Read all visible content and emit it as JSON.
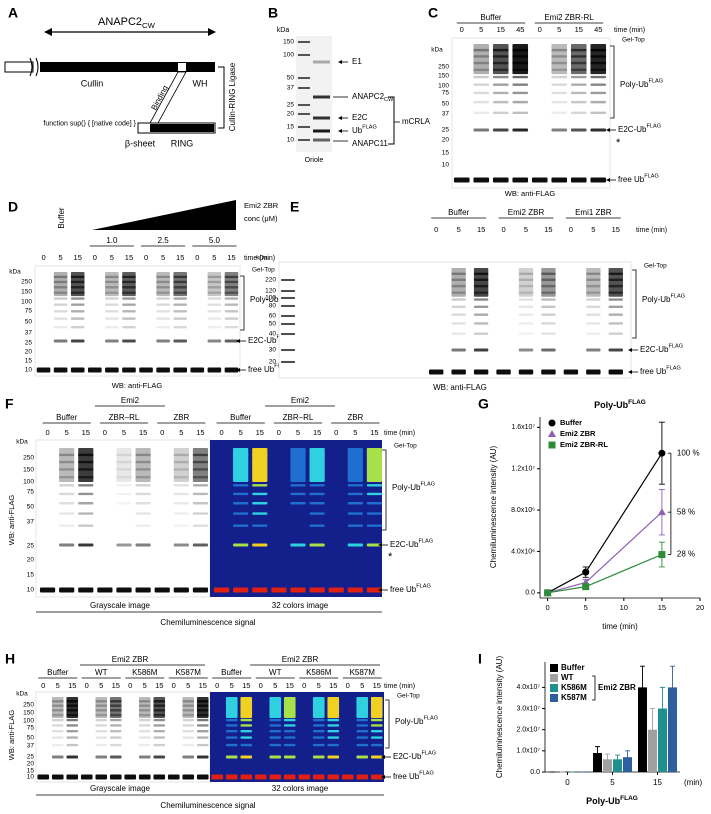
{
  "panel_labels": [
    "A",
    "B",
    "C",
    "D",
    "E",
    "F",
    "G",
    "H",
    "I"
  ],
  "a": {
    "anapc2": {
      "main": "ANAPC2",
      "sub": "CW"
    },
    "cullin": "Cullin",
    "wh": "WH",
    "binding": "Binding",
    "anapc11": "ANAPC11",
    "beta_sheet": "β-sheet",
    "ring": "RING",
    "ligase": "Cullin-RING Ligase"
  },
  "b": {
    "kda": "kDa",
    "markers": [
      "150",
      "100",
      "50",
      "37",
      "25",
      "20",
      "15",
      "10"
    ],
    "e1": "E1",
    "anapc2": {
      "main": "ANAPC2",
      "sub": "CW"
    },
    "e2c": "E2C",
    "ub": {
      "main": "Ub",
      "sup": "FLAG"
    },
    "anapc11": "ANAPC11",
    "complex": "mCRLA",
    "stain": "Oriole"
  },
  "c": {
    "groups": [
      "Buffer",
      "Emi2 ZBR-RL"
    ],
    "times": [
      "0",
      "5",
      "15",
      "45",
      "0",
      "5",
      "15",
      "45"
    ],
    "time_label": "time (min)",
    "gel_top": "Gel-Top",
    "kda": "kDa",
    "markers": [
      "250",
      "150",
      "100",
      "75",
      "50",
      "37",
      "25",
      "20",
      "15",
      "10"
    ],
    "poly": {
      "main": "Poly-Ub",
      "sup": "FLAG"
    },
    "e2c": {
      "main": "E2C-Ub",
      "sup": "FLAG"
    },
    "star": "*",
    "free": {
      "main": "free Ub",
      "sup": "FLAG"
    },
    "wb": "WB: anti-FLAG"
  },
  "d": {
    "buffer": "Buffer",
    "treatment": "Emi2 ZBR",
    "conc": "conc (μM)",
    "concs": [
      "1.0",
      "2.5",
      "5.0"
    ],
    "times": [
      "0",
      "5",
      "15",
      "0",
      "5",
      "15",
      "0",
      "5",
      "15",
      "0",
      "5",
      "15"
    ],
    "time_label": "time (min)",
    "gel_top": "Gel-Top",
    "kda": "kDa",
    "markers": [
      "250",
      "150",
      "100",
      "75",
      "50",
      "37",
      "25",
      "20",
      "15",
      "10"
    ],
    "poly": {
      "main": "Poly-Ub",
      "sup": "FLAG"
    },
    "e2c": {
      "main": "E2C-Ub",
      "sup": "FLAG"
    },
    "free": {
      "main": "free Ub",
      "sup": "FLAG"
    },
    "wb": "WB: anti-FLAG"
  },
  "e": {
    "groups": [
      "Buffer",
      "Emi2 ZBR",
      "Emi1 ZBR"
    ],
    "times": [
      "0",
      "5",
      "15",
      "0",
      "5",
      "15",
      "0",
      "5",
      "15"
    ],
    "time_label": "time (min)",
    "gel_top": "Gel-Top",
    "kda": "kDa",
    "markers": [
      "220",
      "120",
      "100",
      "80",
      "60",
      "50",
      "40",
      "30",
      "20"
    ],
    "poly": {
      "main": "Poly-Ub",
      "sup": "FLAG"
    },
    "e2c": {
      "main": "E2C-Ub",
      "sup": "FLAG"
    },
    "free": {
      "main": "free Ub",
      "sup": "FLAG"
    },
    "wb": "WB: anti-FLAG"
  },
  "f": {
    "wb": "WB: anti-FLAG",
    "headers": [
      "Emi2",
      "Emi2"
    ],
    "groups": [
      "Buffer",
      "ZBR–RL",
      "ZBR",
      "Buffer",
      "ZBR–RL",
      "ZBR"
    ],
    "times": [
      "0",
      "5",
      "15",
      "0",
      "5",
      "15",
      "0",
      "5",
      "15",
      "0",
      "5",
      "15",
      "0",
      "5",
      "15",
      "0",
      "5",
      "15"
    ],
    "time_label": "time (min)",
    "gel_top": "Gel-Top",
    "kda": "kDa",
    "markers": [
      "250",
      "150",
      "100",
      "75",
      "50",
      "37",
      "25",
      "20",
      "15",
      "10"
    ],
    "poly": {
      "main": "Poly-Ub",
      "sup": "FLAG"
    },
    "e2c": {
      "main": "E2C-Ub",
      "sup": "FLAG"
    },
    "star": "*",
    "free": {
      "main": "free Ub",
      "sup": "FLAG"
    },
    "images": [
      "Grayscale image",
      "32 colors  image"
    ],
    "signal": "Chemiluminescence signal"
  },
  "h": {
    "wb": "WB: anti-FLAG",
    "headers": [
      "Emi2 ZBR",
      "Emi2 ZBR"
    ],
    "groups": [
      "Buffer",
      "WT",
      "K586M",
      "K587M",
      "Buffer",
      "WT",
      "K586M",
      "K587M"
    ],
    "times": [
      "0",
      "5",
      "15",
      "0",
      "5",
      "15",
      "0",
      "5",
      "15",
      "0",
      "5",
      "15",
      "0",
      "5",
      "15",
      "0",
      "5",
      "15",
      "0",
      "5",
      "15",
      "0",
      "5",
      "15"
    ],
    "time_label": "time (min)",
    "gel_top": "Gel-Top",
    "kda": "kDa",
    "markers": [
      "250",
      "150",
      "100",
      "75",
      "50",
      "37",
      "25",
      "20",
      "15",
      "10"
    ],
    "poly": {
      "main": "Poly-Ub",
      "sup": "FLAG"
    },
    "e2c": {
      "main": "E2C-Ub",
      "sup": "FLAG"
    },
    "free": {
      "main": "free Ub",
      "sup": "FLAG"
    },
    "images": [
      "Grayscale image",
      "32 colors  image"
    ],
    "signal": "Chemiluminescence signal"
  },
  "chart_data": [
    {
      "type": "line",
      "title": "Poly-Ub",
      "title_sup": "FLAG",
      "x": [
        0,
        5,
        15
      ],
      "series": [
        {
          "name": "Buffer",
          "color": "#000000",
          "marker": "circle",
          "values": [
            0,
            2000000,
            13500000
          ],
          "errors": [
            0,
            500000,
            3000000
          ]
        },
        {
          "name": "Emi2  ZBR",
          "color": "#8e5fb4",
          "marker": "triangle",
          "values": [
            0,
            1000000,
            7800000
          ],
          "errors": [
            0,
            300000,
            2200000
          ]
        },
        {
          "name": "Emi2  ZBR-RL",
          "color": "#2e8b3a",
          "marker": "square",
          "values": [
            0,
            600000,
            3700000
          ],
          "errors": [
            0,
            200000,
            1200000
          ]
        }
      ],
      "xlim": [
        -1,
        20
      ],
      "xticks": [
        0,
        5,
        10,
        15,
        20
      ],
      "ylim": [
        -500000,
        17000000
      ],
      "yticks": [
        {
          "value": 0,
          "label": "0.0"
        },
        {
          "value": 4000000,
          "label": "4.0x10⁶"
        },
        {
          "value": 8000000,
          "label": "8.0x10⁶"
        },
        {
          "value": 12000000,
          "label": "1.2x10⁷"
        },
        {
          "value": 16000000,
          "label": "1.6x10⁷"
        }
      ],
      "xlabel": "time (min)",
      "ylabel": "Chemiluminescence intensity (AU)",
      "annotations": [
        "100 %",
        "58 %",
        "28 %"
      ],
      "grid": false
    },
    {
      "type": "bar",
      "categories": [
        "0",
        "5",
        "15"
      ],
      "series": [
        {
          "name": "Buffer",
          "color": "#000000",
          "values": [
            0,
            9000000,
            40000000
          ],
          "errors": [
            0,
            3000000,
            10000000
          ]
        },
        {
          "name": "WT",
          "color": "#a0a0a0",
          "values": [
            0,
            6000000,
            20000000
          ],
          "errors": [
            0,
            2500000,
            10000000
          ]
        },
        {
          "name": "K586M",
          "color": "#1f8f8f",
          "values": [
            0,
            6000000,
            30000000
          ],
          "errors": [
            0,
            2000000,
            10000000
          ]
        },
        {
          "name": "K587M",
          "color": "#2d5fa0",
          "values": [
            0,
            7000000,
            40000000
          ],
          "errors": [
            0,
            3000000,
            10000000
          ]
        }
      ],
      "ylim": [
        0,
        52000000
      ],
      "yticks": [
        {
          "value": 0,
          "label": "0.0"
        },
        {
          "value": 10000000,
          "label": "1.0x10⁷"
        },
        {
          "value": 20000000,
          "label": "2.0x10⁷"
        },
        {
          "value": 30000000,
          "label": "3.0x10⁷"
        },
        {
          "value": 40000000,
          "label": "4.0x10⁷"
        }
      ],
      "xlabel": "Poly-Ub",
      "xlabel_sup": "FLAG",
      "xunit": "(min)",
      "ylabel": "Chemiluminescence intensity (AU)",
      "legend_group": "Emi2 ZBR",
      "grid": false
    }
  ]
}
